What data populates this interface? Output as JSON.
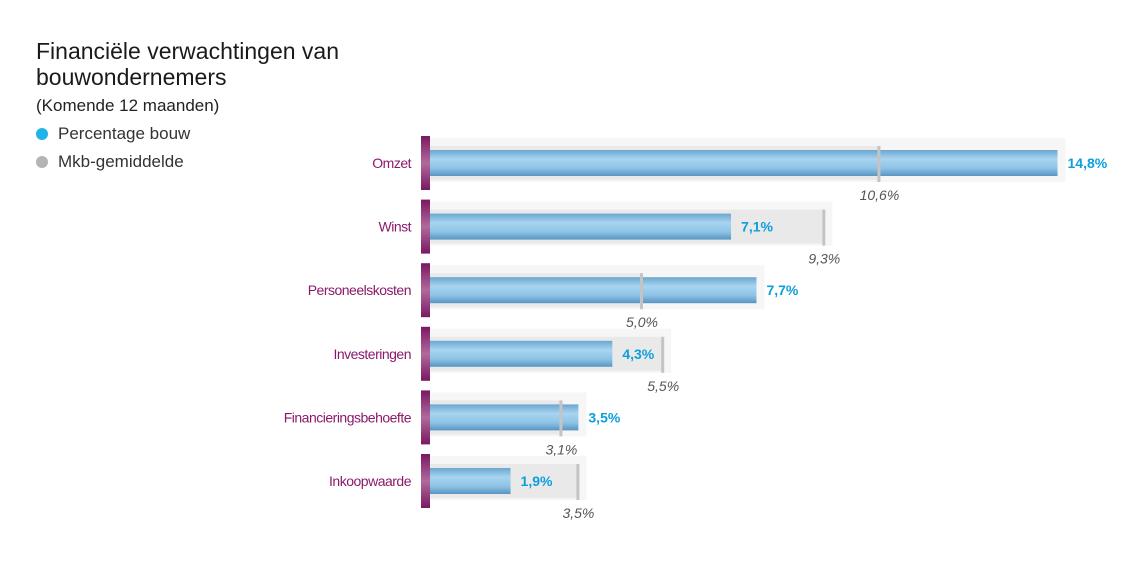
{
  "chart_data": {
    "type": "bar",
    "orientation": "horizontal",
    "title": "Financiële verwachtingen van bouwondernemers",
    "subtitle": "(Komende 12 maanden)",
    "legend": [
      {
        "name": "Percentage bouw",
        "color": "#1fb4e6"
      },
      {
        "name": "Mkb-gemiddelde",
        "color": "#b4b4b4"
      }
    ],
    "categories": [
      "Omzet",
      "Winst",
      "Personeelskosten",
      "Investeringen",
      "Financieringsbehoefte",
      "Inkoopwaarde"
    ],
    "series": [
      {
        "name": "Percentage bouw",
        "values": [
          14.8,
          7.1,
          7.7,
          4.3,
          3.5,
          1.9
        ],
        "labels": [
          "14,8%",
          "7,1%",
          "7,7%",
          "4,3%",
          "3,5%",
          "1,9%"
        ]
      },
      {
        "name": "Mkb-gemiddelde",
        "values": [
          10.6,
          9.3,
          5.0,
          5.5,
          3.1,
          3.5
        ],
        "labels": [
          "10,6%",
          "9,3%",
          "5,0%",
          "5,5%",
          "3,1%",
          "3,5%"
        ]
      }
    ],
    "xlim": [
      0,
      15
    ],
    "grid": false
  },
  "colors": {
    "category": "#8b1a6b",
    "value": "#0d9fdc",
    "mkb": "#555555"
  }
}
